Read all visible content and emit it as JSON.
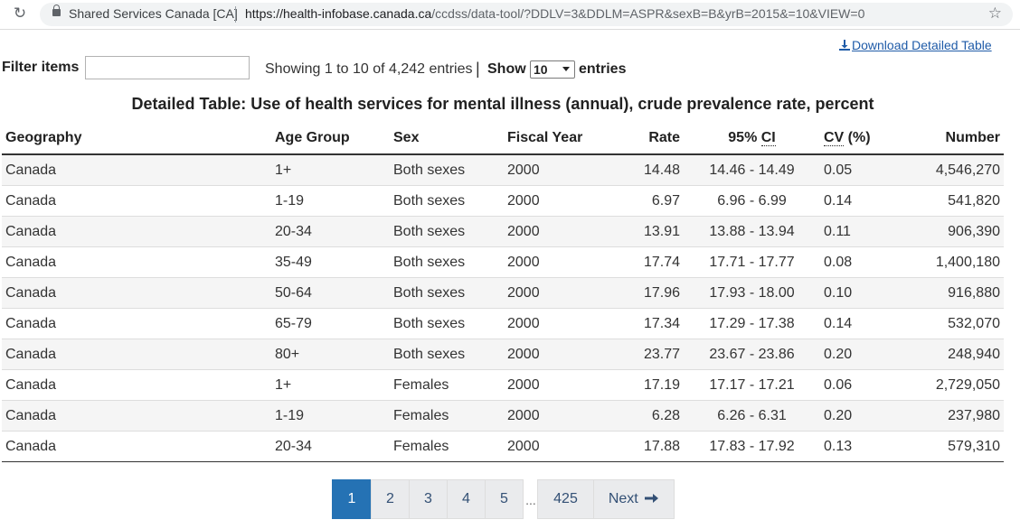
{
  "browser": {
    "site_identity": "Shared Services Canada [CA]",
    "url_host": "https://health-infobase.canada.ca",
    "url_path": "/ccdss/data-tool/?DDLV=3&DDLM=ASPR&sexB=B&yrB=2015&=10&VIEW=0",
    "reload_icon": "reload-icon",
    "lock_icon": "lock-icon",
    "bookmark_icon": "star-icon"
  },
  "download": {
    "label": "Download Detailed Table",
    "icon": "download-icon"
  },
  "filter": {
    "label": "Filter items",
    "value": "",
    "placeholder": ""
  },
  "info": {
    "showing": "Showing 1 to 10 of 4,242 entries",
    "separator": "|"
  },
  "length": {
    "show_label": "Show",
    "selected": "10",
    "entries_label": "entries"
  },
  "caption": "Detailed Table: Use of health services for mental illness (annual), crude prevalence rate, percent",
  "table": {
    "headers": {
      "geography": "Geography",
      "age_group": "Age Group",
      "sex": "Sex",
      "fiscal_year": "Fiscal Year",
      "rate": "Rate",
      "ci_prefix": "95% ",
      "ci_abbr": "CI",
      "cv_abbr": "CV",
      "cv_suffix": " (%)",
      "number": "Number"
    },
    "rows": [
      {
        "geo": "Canada",
        "age": "1+",
        "sex": "Both sexes",
        "year": "2000",
        "rate": "14.48",
        "ci": "14.46 - 14.49",
        "cv": "0.05",
        "number": "4,546,270"
      },
      {
        "geo": "Canada",
        "age": "1-19",
        "sex": "Both sexes",
        "year": "2000",
        "rate": "6.97",
        "ci": "6.96 - 6.99",
        "cv": "0.14",
        "number": "541,820"
      },
      {
        "geo": "Canada",
        "age": "20-34",
        "sex": "Both sexes",
        "year": "2000",
        "rate": "13.91",
        "ci": "13.88 - 13.94",
        "cv": "0.11",
        "number": "906,390"
      },
      {
        "geo": "Canada",
        "age": "35-49",
        "sex": "Both sexes",
        "year": "2000",
        "rate": "17.74",
        "ci": "17.71 - 17.77",
        "cv": "0.08",
        "number": "1,400,180"
      },
      {
        "geo": "Canada",
        "age": "50-64",
        "sex": "Both sexes",
        "year": "2000",
        "rate": "17.96",
        "ci": "17.93 - 18.00",
        "cv": "0.10",
        "number": "916,880"
      },
      {
        "geo": "Canada",
        "age": "65-79",
        "sex": "Both sexes",
        "year": "2000",
        "rate": "17.34",
        "ci": "17.29 - 17.38",
        "cv": "0.14",
        "number": "532,070"
      },
      {
        "geo": "Canada",
        "age": "80+",
        "sex": "Both sexes",
        "year": "2000",
        "rate": "23.77",
        "ci": "23.67 - 23.86",
        "cv": "0.20",
        "number": "248,940"
      },
      {
        "geo": "Canada",
        "age": "1+",
        "sex": "Females",
        "year": "2000",
        "rate": "17.19",
        "ci": "17.17 - 17.21",
        "cv": "0.06",
        "number": "2,729,050"
      },
      {
        "geo": "Canada",
        "age": "1-19",
        "sex": "Females",
        "year": "2000",
        "rate": "6.28",
        "ci": "6.26 - 6.31",
        "cv": "0.20",
        "number": "237,980"
      },
      {
        "geo": "Canada",
        "age": "20-34",
        "sex": "Females",
        "year": "2000",
        "rate": "17.88",
        "ci": "17.83 - 17.92",
        "cv": "0.13",
        "number": "579,310"
      }
    ]
  },
  "pagination": {
    "pages": [
      "1",
      "2",
      "3",
      "4",
      "5"
    ],
    "active": "1",
    "ellipsis": "...",
    "last": "425",
    "next_label": "Next",
    "next_icon": "arrow-right-icon"
  },
  "colors": {
    "link": "#1f5ba8",
    "pager_active": "#2572b4",
    "pager_bg": "#eaebed",
    "pager_text": "#335075",
    "stripe": "#f5f5f5"
  }
}
